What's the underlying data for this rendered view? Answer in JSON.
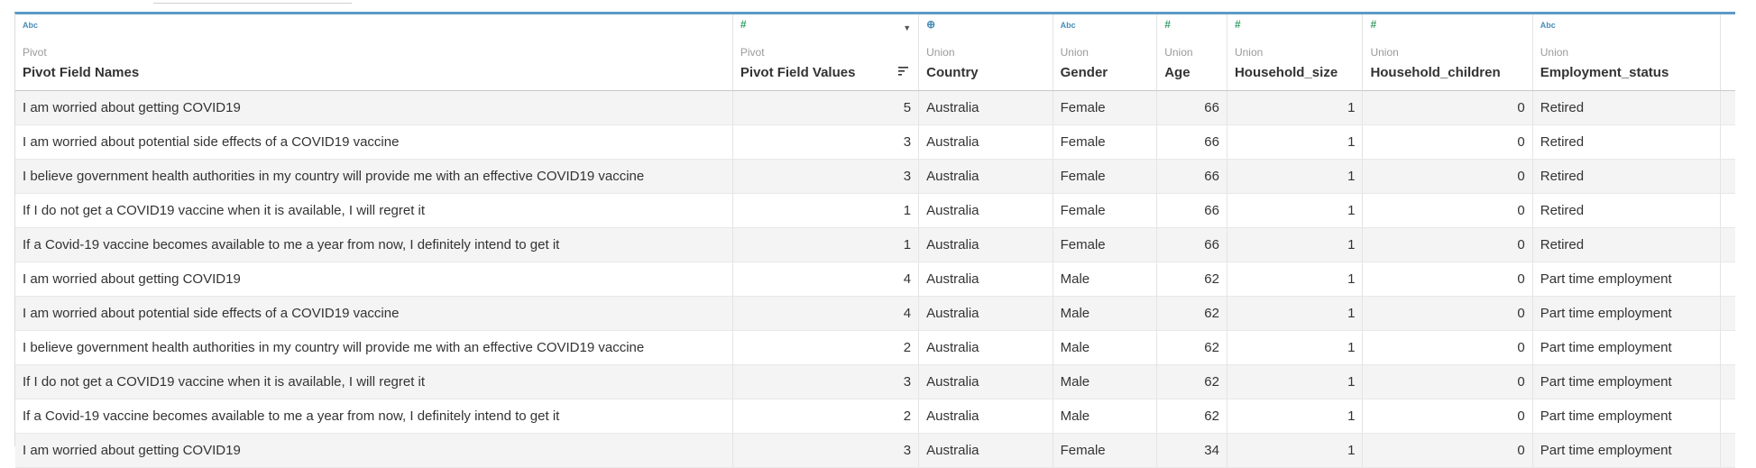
{
  "columns": [
    {
      "type_icon": "Abc",
      "source": "Pivot",
      "name": "Pivot Field Names"
    },
    {
      "type_icon": "#",
      "source": "Pivot",
      "name": "Pivot Field Values"
    },
    {
      "type_icon": "⊕",
      "source": "Union",
      "name": "Country"
    },
    {
      "type_icon": "Abc",
      "source": "Union",
      "name": "Gender"
    },
    {
      "type_icon": "#",
      "source": "Union",
      "name": "Age"
    },
    {
      "type_icon": "#",
      "source": "Union",
      "name": "Household_size"
    },
    {
      "type_icon": "#",
      "source": "Union",
      "name": "Household_children"
    },
    {
      "type_icon": "Abc",
      "source": "Union",
      "name": "Employment_status"
    }
  ],
  "rows": [
    {
      "field_name": "I am worried about getting COVID19",
      "value": "5",
      "country": "Australia",
      "gender": "Female",
      "age": "66",
      "household_size": "1",
      "household_children": "0",
      "employment_status": "Retired"
    },
    {
      "field_name": "I am worried about potential side effects of a COVID19 vaccine",
      "value": "3",
      "country": "Australia",
      "gender": "Female",
      "age": "66",
      "household_size": "1",
      "household_children": "0",
      "employment_status": "Retired"
    },
    {
      "field_name": "I believe government health authorities in my country will provide me with an effective COVID19 vaccine",
      "value": "3",
      "country": "Australia",
      "gender": "Female",
      "age": "66",
      "household_size": "1",
      "household_children": "0",
      "employment_status": "Retired"
    },
    {
      "field_name": "If I do not get a COVID19 vaccine when it is available, I will regret it",
      "value": "1",
      "country": "Australia",
      "gender": "Female",
      "age": "66",
      "household_size": "1",
      "household_children": "0",
      "employment_status": "Retired"
    },
    {
      "field_name": "If a Covid-19 vaccine becomes available to me a year from now, I definitely intend to get it",
      "value": "1",
      "country": "Australia",
      "gender": "Female",
      "age": "66",
      "household_size": "1",
      "household_children": "0",
      "employment_status": "Retired"
    },
    {
      "field_name": "I am worried about getting COVID19",
      "value": "4",
      "country": "Australia",
      "gender": "Male",
      "age": "62",
      "household_size": "1",
      "household_children": "0",
      "employment_status": "Part time employment"
    },
    {
      "field_name": "I am worried about potential side effects of a COVID19 vaccine",
      "value": "4",
      "country": "Australia",
      "gender": "Male",
      "age": "62",
      "household_size": "1",
      "household_children": "0",
      "employment_status": "Part time employment"
    },
    {
      "field_name": "I believe government health authorities in my country will provide me with an effective COVID19 vaccine",
      "value": "2",
      "country": "Australia",
      "gender": "Male",
      "age": "62",
      "household_size": "1",
      "household_children": "0",
      "employment_status": "Part time employment"
    },
    {
      "field_name": "If I do not get a COVID19 vaccine when it is available, I will regret it",
      "value": "3",
      "country": "Australia",
      "gender": "Male",
      "age": "62",
      "household_size": "1",
      "household_children": "0",
      "employment_status": "Part time employment"
    },
    {
      "field_name": "If a Covid-19 vaccine becomes available to me a year from now, I definitely intend to get it",
      "value": "2",
      "country": "Australia",
      "gender": "Male",
      "age": "62",
      "household_size": "1",
      "household_children": "0",
      "employment_status": "Part time employment"
    },
    {
      "field_name": "I am worried about getting COVID19",
      "value": "3",
      "country": "Australia",
      "gender": "Female",
      "age": "34",
      "household_size": "1",
      "household_children": "0",
      "employment_status": "Part time employment"
    }
  ],
  "colors": {
    "accent_top_border": "#5b9bc7",
    "string_type_icon": "#4a8db7",
    "number_type_icon": "#3aa06a",
    "row_alt": "#f4f4f4"
  }
}
